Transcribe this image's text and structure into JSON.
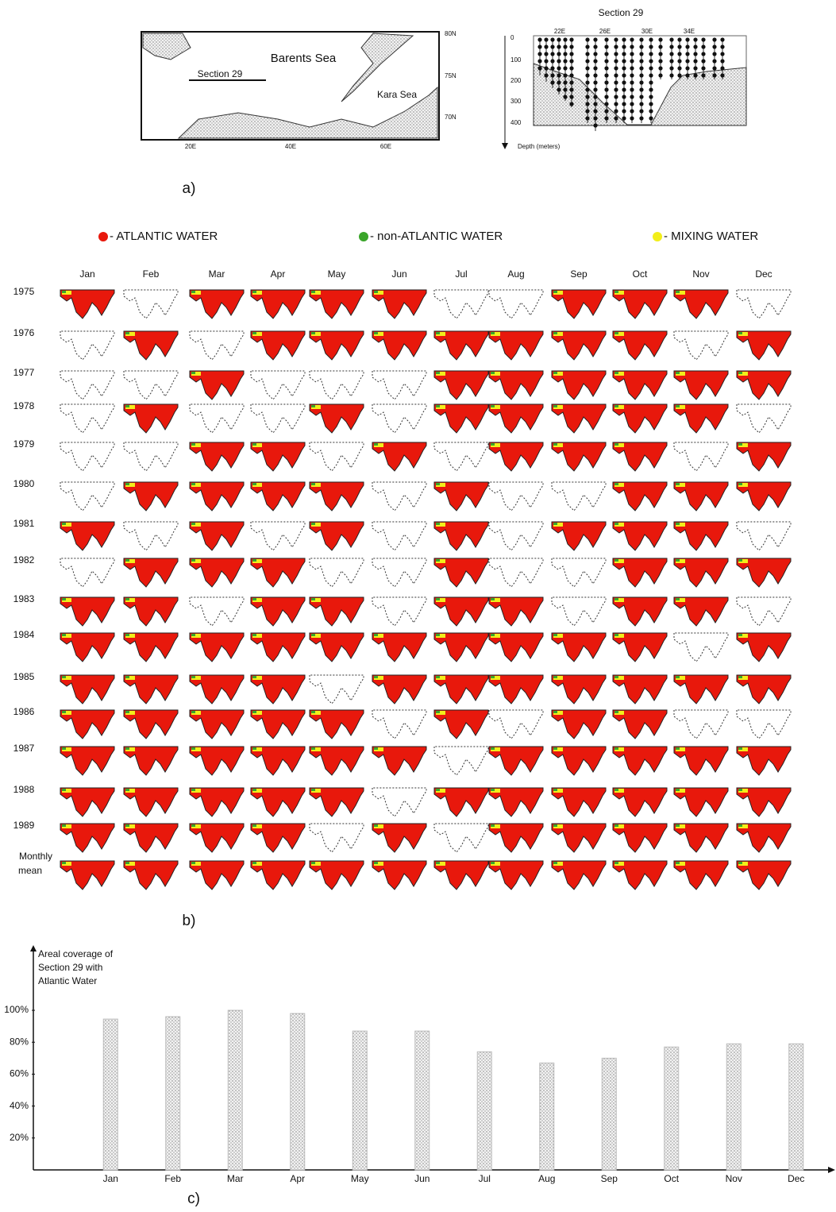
{
  "map": {
    "sea1": "Barents Sea",
    "sea2": "Kara Sea",
    "section": "Section 29",
    "lats": [
      "80N",
      "75N",
      "70N"
    ],
    "lons": [
      "20E",
      "40E",
      "60E"
    ]
  },
  "section_plot": {
    "title": "Section 29",
    "depth_ticks": [
      "0",
      "100",
      "200",
      "300",
      "400"
    ],
    "lons": [
      "22E",
      "26E",
      "30E",
      "34E"
    ],
    "depth_label": "Depth (meters)"
  },
  "panel_labels": [
    "a)",
    "b)",
    "c)"
  ],
  "legend": [
    {
      "label": "- ATLANTIC WATER",
      "color": "#e8180c"
    },
    {
      "label": "- non-ATLANTIC WATER",
      "color": "#3aa52a"
    },
    {
      "label": "- MIXING WATER",
      "color": "#f2ee1a"
    }
  ],
  "grid": {
    "months": [
      "Jan",
      "Feb",
      "Mar",
      "Apr",
      "May",
      "Jun",
      "Jul",
      "Aug",
      "Sep",
      "Oct",
      "Nov",
      "Dec"
    ],
    "years": [
      "1975",
      "1976",
      "1977",
      "1978",
      "1979",
      "1980",
      "1981",
      "1982",
      "1983",
      "1984",
      "1985",
      "1986",
      "1987",
      "1988",
      "1989"
    ],
    "mean_label": [
      "Monthly",
      "mean"
    ],
    "observed": [
      [
        1,
        0,
        1,
        1,
        1,
        1,
        0,
        0,
        1,
        1,
        1,
        0
      ],
      [
        0,
        1,
        0,
        1,
        1,
        1,
        1,
        1,
        1,
        1,
        0,
        1
      ],
      [
        0,
        0,
        1,
        0,
        0,
        0,
        1,
        1,
        1,
        1,
        1,
        1
      ],
      [
        0,
        1,
        0,
        0,
        1,
        0,
        1,
        1,
        1,
        1,
        1,
        0
      ],
      [
        0,
        0,
        1,
        1,
        0,
        1,
        0,
        1,
        1,
        1,
        0,
        1
      ],
      [
        0,
        1,
        1,
        1,
        1,
        0,
        1,
        0,
        0,
        1,
        1,
        1
      ],
      [
        1,
        0,
        1,
        0,
        1,
        0,
        1,
        0,
        1,
        1,
        1,
        0
      ],
      [
        0,
        1,
        1,
        1,
        0,
        0,
        1,
        0,
        0,
        1,
        1,
        1
      ],
      [
        1,
        1,
        0,
        1,
        1,
        0,
        1,
        1,
        0,
        1,
        1,
        0
      ],
      [
        1,
        1,
        1,
        1,
        1,
        1,
        1,
        1,
        1,
        1,
        0,
        1
      ],
      [
        1,
        1,
        1,
        1,
        0,
        1,
        1,
        1,
        1,
        1,
        1,
        1
      ],
      [
        1,
        1,
        1,
        1,
        1,
        0,
        1,
        0,
        1,
        1,
        0,
        0
      ],
      [
        1,
        1,
        1,
        1,
        1,
        1,
        0,
        1,
        1,
        1,
        1,
        1
      ],
      [
        1,
        1,
        1,
        1,
        1,
        0,
        1,
        1,
        1,
        1,
        1,
        1
      ],
      [
        1,
        1,
        1,
        1,
        0,
        1,
        0,
        1,
        1,
        1,
        1,
        1
      ],
      [
        1,
        1,
        1,
        1,
        1,
        1,
        1,
        1,
        1,
        1,
        1,
        1
      ]
    ]
  },
  "chart_data": {
    "type": "bar",
    "y_label": [
      "Areal coverage of",
      "Section 29 with",
      "Atlantic Water"
    ],
    "categories": [
      "Jan",
      "Feb",
      "Mar",
      "Apr",
      "May",
      "Jun",
      "Jul",
      "Aug",
      "Sep",
      "Oct",
      "Nov",
      "Dec"
    ],
    "values": [
      94.5,
      96,
      100,
      98,
      87,
      87,
      74,
      67,
      70,
      77,
      79,
      79
    ],
    "color": "#d8d8d8",
    "ylim": [
      0,
      105
    ],
    "yticks": [
      {
        "value": 20,
        "label": "20%"
      },
      {
        "value": 40,
        "label": "40%"
      },
      {
        "value": 60,
        "label": "60%"
      },
      {
        "value": 80,
        "label": "80%"
      },
      {
        "value": 100,
        "label": "100%"
      }
    ]
  }
}
